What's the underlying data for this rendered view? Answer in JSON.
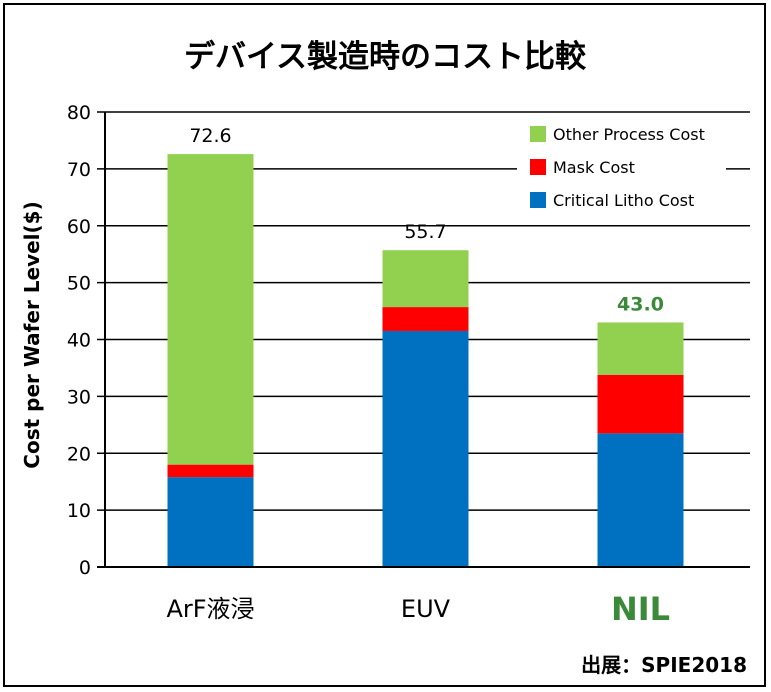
{
  "chart_data": {
    "type": "bar",
    "stacked": true,
    "title": "デバイス製造時のコスト比較",
    "ylabel": "Cost per Wafer Level($)",
    "xlabel": "",
    "ylim": [
      0,
      80
    ],
    "yticks": [
      0,
      10,
      20,
      30,
      40,
      50,
      60,
      70,
      80
    ],
    "grid": true,
    "legend_position": "top-right",
    "categories": [
      "ArF液浸",
      "EUV",
      "NIL"
    ],
    "series": [
      {
        "name": "Critical Litho Cost",
        "color": "#0070C0",
        "values": [
          15.8,
          41.5,
          23.5
        ]
      },
      {
        "name": "Mask Cost",
        "color": "#FF0000",
        "values": [
          2.2,
          4.2,
          10.3
        ]
      },
      {
        "name": "Other Process Cost",
        "color": "#92D050",
        "values": [
          54.6,
          10.0,
          9.2
        ]
      }
    ],
    "legend_order": [
      "Other Process Cost",
      "Mask Cost",
      "Critical Litho Cost"
    ],
    "totals": [
      "72.6",
      "55.7",
      "43.0"
    ],
    "highlight_color": "#3A8A3A",
    "highlight_category": "NIL",
    "source": "出展：SPIE2018"
  }
}
